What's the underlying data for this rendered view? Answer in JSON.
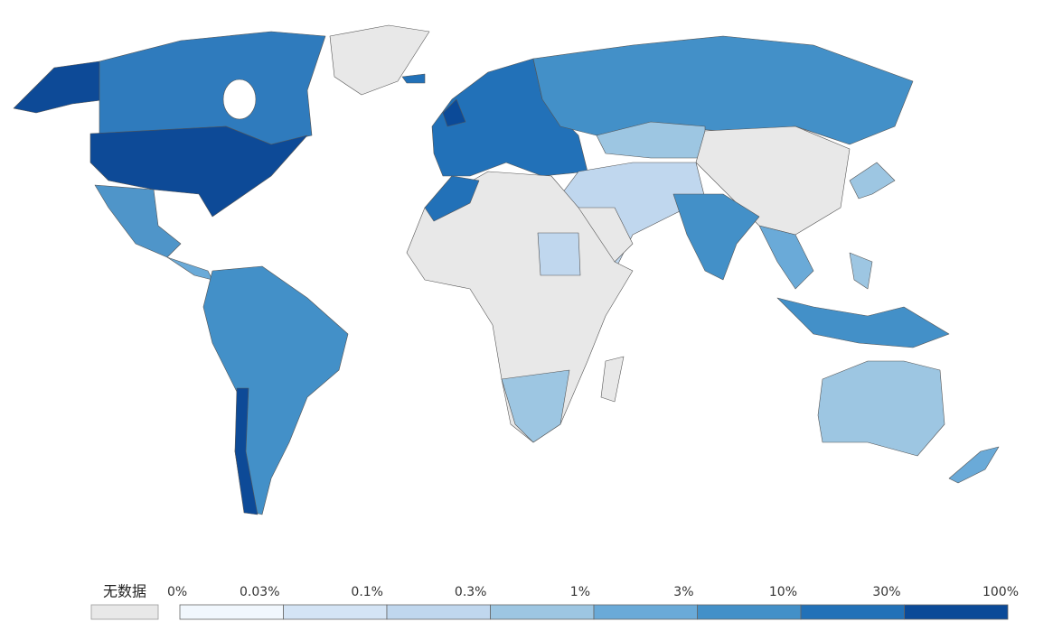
{
  "legend": {
    "no_data_label": "无数据",
    "no_data_color": "#e8e8e8",
    "ticks": [
      "0%",
      "0.03%",
      "0.1%",
      "0.3%",
      "1%",
      "3%",
      "10%",
      "30%",
      "100%"
    ],
    "colors": [
      "#f1f7fd",
      "#d4e4f5",
      "#c0d7ee",
      "#9dc6e2",
      "#6aaad8",
      "#4390c8",
      "#2271b8",
      "#0b4a98"
    ]
  }
}
